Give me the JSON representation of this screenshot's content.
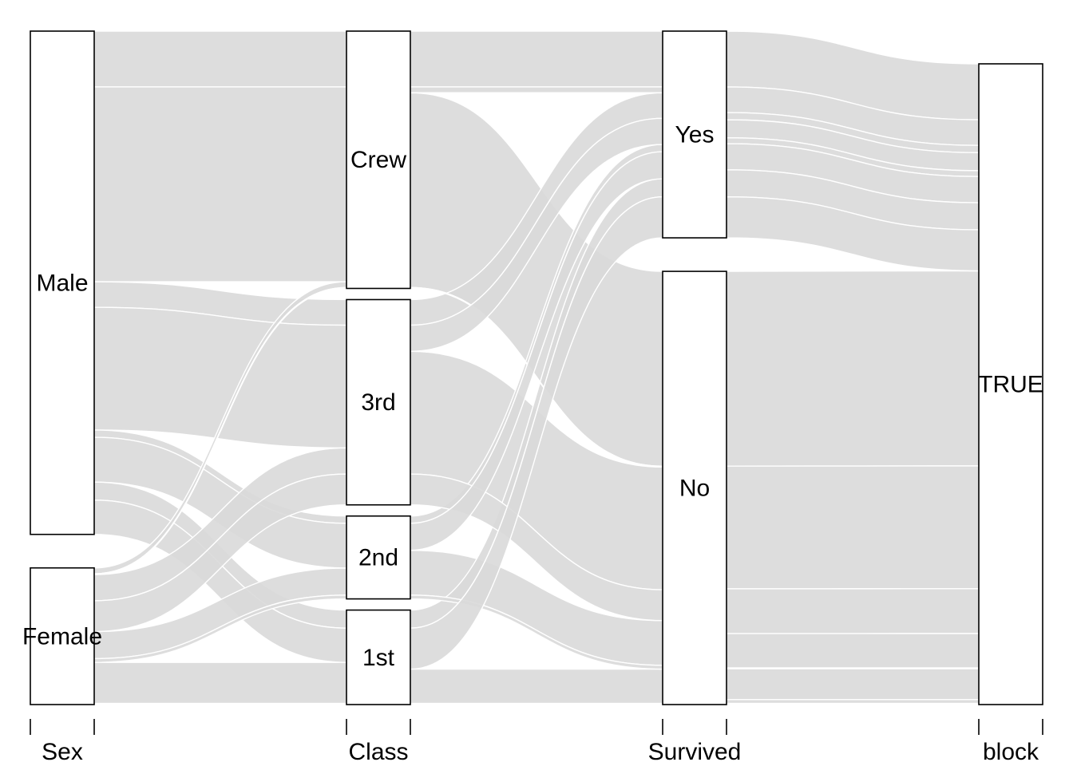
{
  "chart_data": {
    "type": "alluvial",
    "axes": [
      "Sex",
      "Class",
      "Survived",
      "block"
    ],
    "strata": {
      "Sex": [
        "Male",
        "Female"
      ],
      "Class": [
        "Crew",
        "3rd",
        "2nd",
        "1st"
      ],
      "Survived": [
        "Yes",
        "No"
      ],
      "block": [
        "TRUE"
      ]
    },
    "flows": [
      {
        "sex": "Male",
        "class": "Crew",
        "survived": "Yes",
        "count": 192
      },
      {
        "sex": "Male",
        "class": "Crew",
        "survived": "No",
        "count": 670
      },
      {
        "sex": "Male",
        "class": "3rd",
        "survived": "Yes",
        "count": 88
      },
      {
        "sex": "Male",
        "class": "3rd",
        "survived": "No",
        "count": 422
      },
      {
        "sex": "Male",
        "class": "2nd",
        "survived": "Yes",
        "count": 25
      },
      {
        "sex": "Male",
        "class": "2nd",
        "survived": "No",
        "count": 154
      },
      {
        "sex": "Male",
        "class": "1st",
        "survived": "Yes",
        "count": 62
      },
      {
        "sex": "Male",
        "class": "1st",
        "survived": "No",
        "count": 118
      },
      {
        "sex": "Female",
        "class": "Crew",
        "survived": "Yes",
        "count": 20
      },
      {
        "sex": "Female",
        "class": "Crew",
        "survived": "No",
        "count": 3
      },
      {
        "sex": "Female",
        "class": "3rd",
        "survived": "Yes",
        "count": 90
      },
      {
        "sex": "Female",
        "class": "3rd",
        "survived": "No",
        "count": 106
      },
      {
        "sex": "Female",
        "class": "2nd",
        "survived": "Yes",
        "count": 93
      },
      {
        "sex": "Female",
        "class": "2nd",
        "survived": "No",
        "count": 13
      },
      {
        "sex": "Female",
        "class": "1st",
        "survived": "Yes",
        "count": 141
      },
      {
        "sex": "Female",
        "class": "1st",
        "survived": "No",
        "count": 4
      }
    ],
    "colors": {
      "flow": "#d9d9d9",
      "flow_edge": "#ffffff",
      "box_fill": "#ffffff",
      "box_stroke": "#000000"
    }
  }
}
